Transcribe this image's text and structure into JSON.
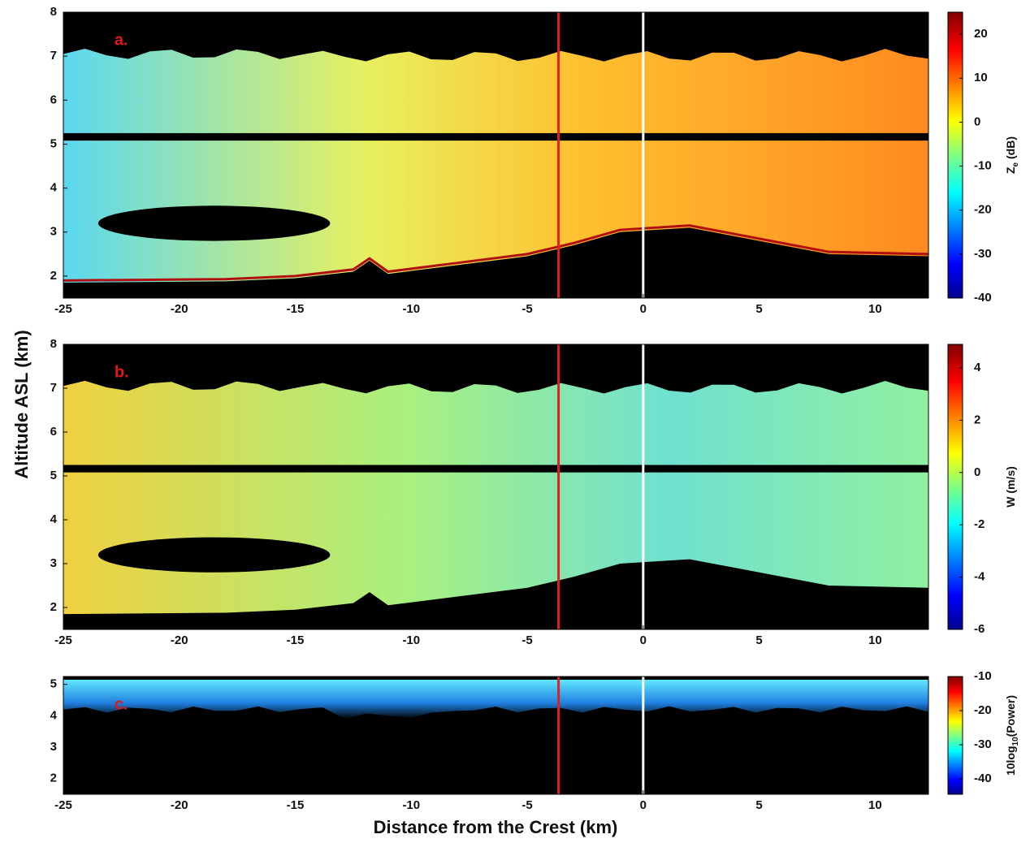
{
  "chart_data": [
    {
      "type": "heatmap",
      "panel_label": "a.",
      "xlim": [
        -25,
        12.3
      ],
      "xticks": [
        -25,
        -20,
        -15,
        -10,
        -5,
        0,
        5,
        10
      ],
      "ylim": [
        1.5,
        8
      ],
      "yticks": [
        2,
        3,
        4,
        5,
        6,
        7,
        8
      ],
      "colorbar": {
        "label": {
          "main": "Z",
          "sub": "e",
          "rest": " (dB)"
        },
        "lim": [
          -40,
          25
        ],
        "ticks": [
          -40,
          -30,
          -20,
          -10,
          0,
          10,
          20
        ]
      },
      "vertical_lines": [
        {
          "x": -3.65,
          "color": "#e02020"
        },
        {
          "x": 0,
          "color": "#ffffff"
        }
      ]
    },
    {
      "type": "heatmap",
      "panel_label": "b.",
      "xlim": [
        -25,
        12.3
      ],
      "xticks": [
        -25,
        -20,
        -15,
        -10,
        -5,
        0,
        5,
        10
      ],
      "ylim": [
        1.5,
        8
      ],
      "yticks": [
        2,
        3,
        4,
        5,
        6,
        7,
        8
      ],
      "colorbar": {
        "label": {
          "main": "W (m/s)"
        },
        "lim": [
          -6,
          4.9
        ],
        "ticks": [
          -6,
          -4,
          -2,
          0,
          2,
          4
        ]
      },
      "vertical_lines": [
        {
          "x": -3.65,
          "color": "#e02020"
        },
        {
          "x": 0,
          "color": "#ffffff"
        }
      ]
    },
    {
      "type": "heatmap",
      "panel_label": "c.",
      "xlim": [
        -25,
        12.3
      ],
      "xticks": [
        -25,
        -20,
        -15,
        -10,
        -5,
        0,
        5,
        10
      ],
      "ylim": [
        1.5,
        5.25
      ],
      "yticks": [
        2,
        3,
        4,
        5
      ],
      "colorbar": {
        "label": {
          "main": "10log",
          "sub": "10",
          "rest": "(Power)"
        },
        "lim": [
          -44.5,
          -10
        ],
        "ticks": [
          -40,
          -30,
          -20,
          -10
        ]
      },
      "vertical_lines": [
        {
          "x": -3.65,
          "color": "#e02020"
        },
        {
          "x": 0,
          "color": "#ffffff"
        }
      ]
    }
  ],
  "shared": {
    "y_label": "Altitude ASL (km)",
    "x_label": "Distance from the Crest (km)"
  }
}
